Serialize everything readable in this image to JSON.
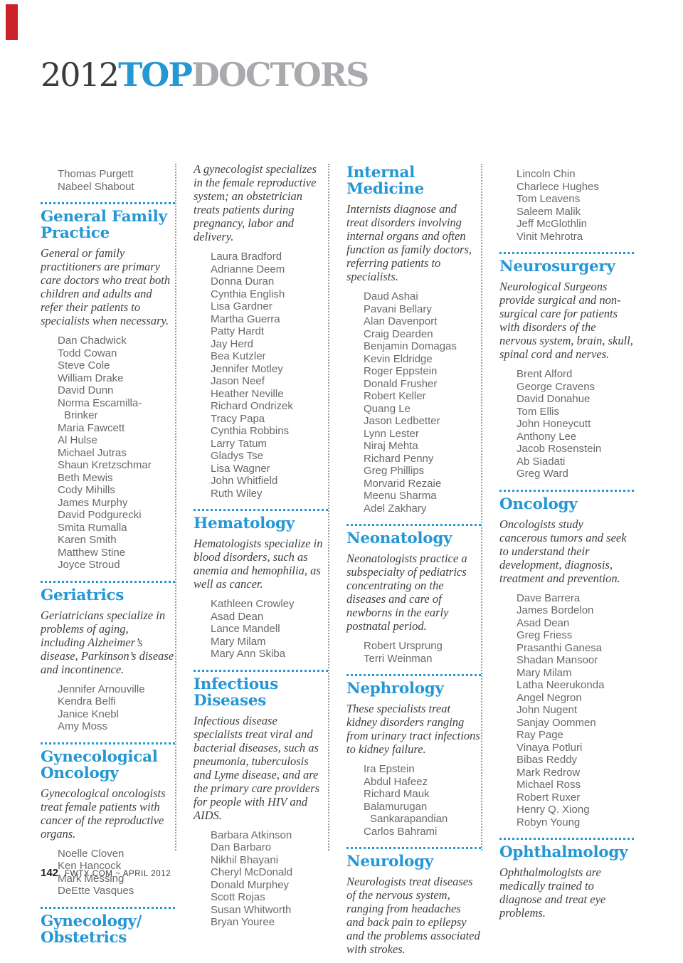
{
  "masthead": {
    "year": "2012",
    "top": "TOP",
    "doctors": "DOCTORS"
  },
  "footer": {
    "page_number": "142",
    "text": "FWTX.COM ~ APRIL 2012"
  },
  "colors": {
    "accent_blue": "#2497d4",
    "title_year_dark": "#3b3b3d",
    "title_doctors_gray": "#a8aaad",
    "red_mark": "#cc2229",
    "name_gray": "#69696b",
    "description_dark": "#3d3e40"
  },
  "columns": [
    {
      "blocks": [
        {
          "names": [
            "Thomas Purgett",
            "Nabeel Shabout"
          ]
        },
        {
          "heading": "General Family Practice",
          "description": "General or family practitioners are primary care doctors who treat both children and adults and refer their patients to specialists when necessary.",
          "names": [
            "Dan Chadwick",
            "Todd Cowan",
            "Steve Cole",
            "William Drake",
            "David Dunn",
            "Norma Escamilla-Brinker",
            "Maria Fawcett",
            "Al Hulse",
            "Michael Jutras",
            "Shaun Kretzschmar",
            "Beth Mewis",
            "Cody Mihills",
            "James Murphy",
            "David Podgurecki",
            "Smita Rumalla",
            "Karen Smith",
            "Matthew Stine",
            "Joyce Stroud"
          ]
        },
        {
          "heading": "Geriatrics",
          "description": "Geriatricians specialize in problems of aging, including Alzheimer’s disease, Parkinson’s disease and incontinence.",
          "names": [
            "Jennifer Arnouville",
            "Kendra Belfi",
            "Janice Knebl",
            "Amy Moss"
          ]
        },
        {
          "heading": "Gynecological Oncology",
          "description": "Gynecological oncologists treat female patients with cancer of the reproductive organs.",
          "names": [
            "Noelle Cloven",
            "Ken Hancock",
            "Mark Messing",
            "DeEtte Vasques"
          ]
        },
        {
          "heading": "Gynecology/ Obstetrics"
        }
      ]
    },
    {
      "blocks": [
        {
          "description": "A gynecologist specializes in the female reproductive system; an obstetrician treats patients during pregnancy, labor and delivery.",
          "names": [
            "Laura Bradford",
            "Adrianne Deem",
            "Donna Duran",
            "Cynthia English",
            "Lisa Gardner",
            "Martha Guerra",
            "Patty Hardt",
            "Jay Herd",
            "Bea Kutzler",
            "Jennifer Motley",
            "Jason Neef",
            "Heather Neville",
            "Richard Ondrizek",
            "Tracy Papa",
            "Cynthia Robbins",
            "Larry Tatum",
            "Gladys Tse",
            "Lisa Wagner",
            "John Whitfield",
            "Ruth Wiley"
          ]
        },
        {
          "heading": "Hematology",
          "description": "Hematologists specialize in blood disorders, such as anemia and hemophilia, as well as cancer.",
          "names": [
            "Kathleen Crowley",
            "Asad Dean",
            "Lance Mandell",
            "Mary Milam",
            "Mary Ann Skiba"
          ]
        },
        {
          "heading": "Infectious Diseases",
          "description": "Infectious disease specialists treat viral and bacterial diseases, such as pneumonia, tuberculosis and Lyme disease, and are the primary care providers for people with HIV and AIDS.",
          "names": [
            "Barbara Atkinson",
            "Dan Barbaro",
            "Nikhil Bhayani",
            "Cheryl McDonald",
            "Donald Murphey",
            "Scott Rojas",
            "Susan Whitworth",
            "Bryan Youree"
          ]
        }
      ]
    },
    {
      "blocks": [
        {
          "heading": "Internal Medicine",
          "description": "Internists diagnose and treat disorders involving internal organs and often function as family doctors, referring patients to specialists.",
          "names": [
            "Daud Ashai",
            "Pavani Bellary",
            "Alan Davenport",
            "Craig Dearden",
            "Benjamin Domagas",
            "Kevin Eldridge",
            "Roger Eppstein",
            "Donald Frusher",
            "Robert Keller",
            "Quang Le",
            "Jason Ledbetter",
            "Lynn Lester",
            "Niraj Mehta",
            "Richard Penny",
            "Greg Phillips",
            "Morvarid Rezaie",
            "Meenu Sharma",
            "Adel Zakhary"
          ]
        },
        {
          "heading": "Neonatology",
          "description": "Neonatologists practice a subspecialty of pediatrics concentrating on the diseases and care of newborns in the early postnatal period.",
          "names": [
            "Robert Ursprung",
            "Terri Weinman"
          ]
        },
        {
          "heading": "Nephrology",
          "description": "These specialists treat kidney disorders ranging from urinary tract infections to kidney failure.",
          "names": [
            "Ira Epstein",
            "Abdul Hafeez",
            "Richard Mauk",
            "Balamurugan Sankarapandian",
            "Carlos Bahrami"
          ]
        },
        {
          "heading": "Neurology",
          "description": "Neurologists treat diseases of the nervous system, ranging from headaches and back pain to epilepsy and the problems associated with strokes."
        }
      ]
    },
    {
      "blocks": [
        {
          "names": [
            "Lincoln Chin",
            "Charlece Hughes",
            "Tom Leavens",
            "Saleem Malik",
            "Jeff McGlothlin",
            "Vinit Mehrotra"
          ]
        },
        {
          "heading": "Neurosurgery",
          "description": "Neurological Surgeons provide surgical and non-surgical care for patients with disorders of the nervous system, brain, skull, spinal cord and nerves.",
          "names": [
            "Brent Alford",
            "George Cravens",
            "David Donahue",
            "Tom Ellis",
            "John Honeycutt",
            "Anthony Lee",
            "Jacob Rosenstein",
            "Ab Siadati",
            "Greg Ward"
          ]
        },
        {
          "heading": "Oncology",
          "description": "Oncologists study cancerous tumors and seek to understand their development, diagnosis, treatment and prevention.",
          "names": [
            "Dave Barrera",
            "James Bordelon",
            "Asad Dean",
            "Greg Friess",
            "Prasanthi Ganesa",
            "Shadan Mansoor",
            "Mary Milam",
            "Latha Neerukonda",
            "Angel Negron",
            "John Nugent",
            "Sanjay Oommen",
            "Ray Page",
            "Vinaya Potluri",
            "Bibas Reddy",
            "Mark Redrow",
            "Michael Ross",
            "Robert Ruxer",
            "Henry Q. Xiong",
            "Robyn Young"
          ]
        },
        {
          "heading": "Ophthalmology",
          "description": "Ophthalmologists are medically trained to diagnose and treat eye problems."
        }
      ]
    }
  ]
}
